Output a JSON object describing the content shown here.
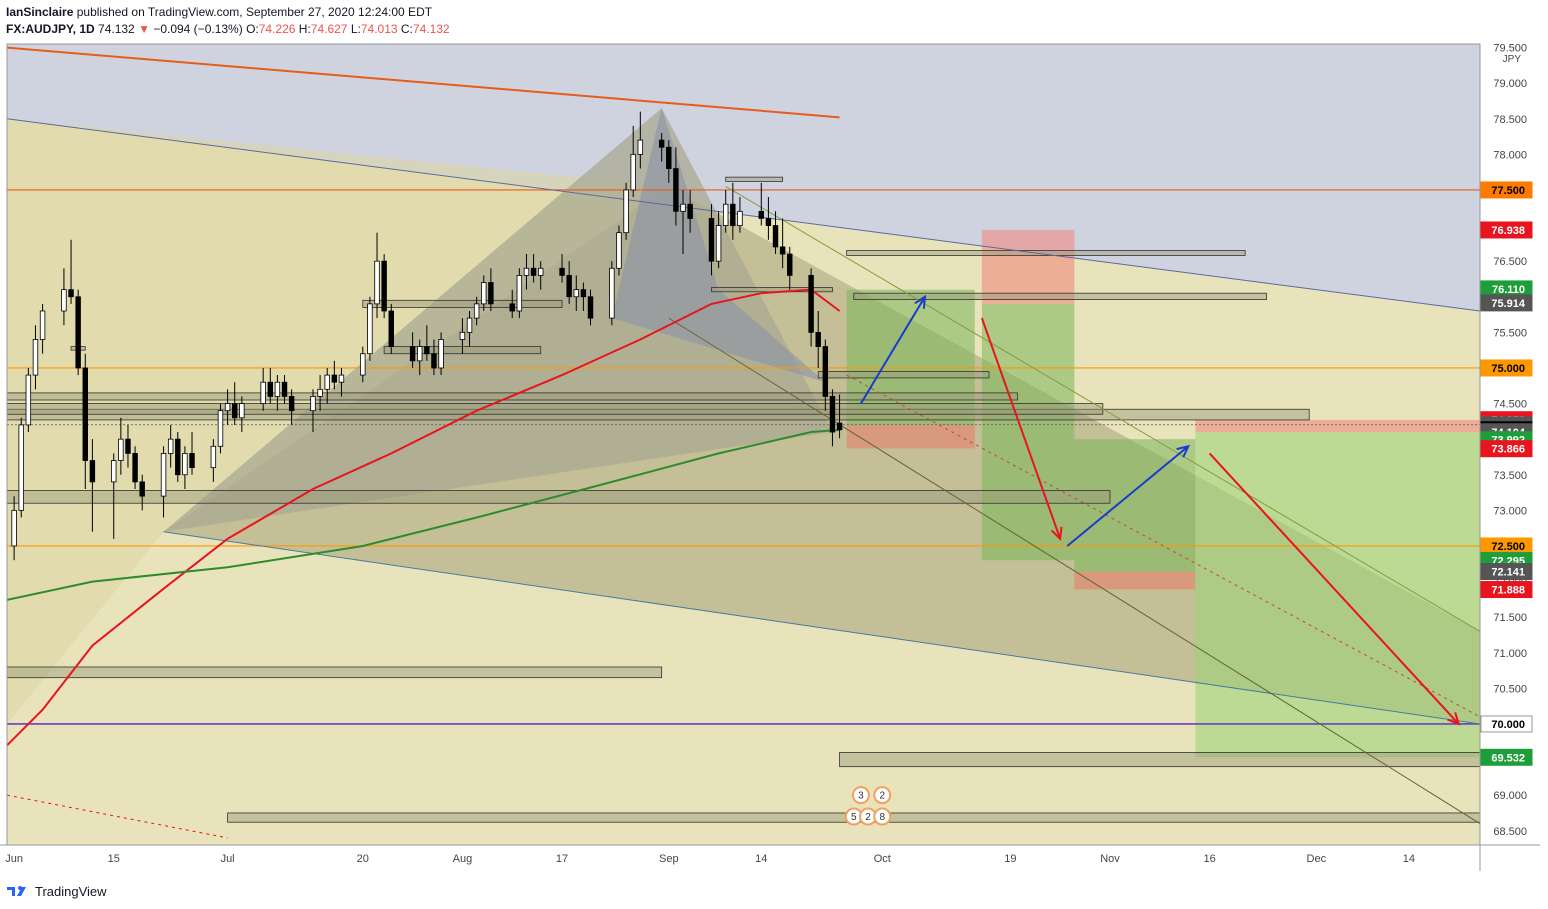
{
  "header": {
    "line1_user": "IanSinclaire",
    "line1_rest": "published on TradingView.com, September 27, 2020 12:24:00 EDT",
    "symbol": "FX:AUDJPY, 1D",
    "last": "74.132",
    "arrow": "▼",
    "change": "−0.094 (−0.13%)",
    "o_label": "O:",
    "o": "74.226",
    "h_label": "H:",
    "h": "74.627",
    "l_label": "L:",
    "l": "74.013",
    "c_label": "C:",
    "c": "74.132"
  },
  "footer": {
    "brand": "TradingView",
    "logo_icon": "tradingview-logo-icon"
  },
  "colors": {
    "up": "#ffffff",
    "down": "#000000",
    "ma_red": "#e8141e",
    "ma_green": "#2e8b2e",
    "orange": "#ff8c00",
    "purple": "#6a3dc8",
    "resistance": "#e65c1a"
  },
  "chart_data": {
    "type": "candlestick",
    "symbol": "FX:AUDJPY",
    "interval": "1D",
    "currency": "JPY",
    "ylim": [
      68.3,
      79.55
    ],
    "xlim": [
      "2020-05-31",
      "2020-12-24"
    ],
    "x_ticks": [
      {
        "date": "2020-06-01",
        "label": "Jun"
      },
      {
        "date": "2020-06-15",
        "label": "15"
      },
      {
        "date": "2020-07-01",
        "label": "Jul"
      },
      {
        "date": "2020-07-20",
        "label": "20"
      },
      {
        "date": "2020-08-03",
        "label": "Aug"
      },
      {
        "date": "2020-08-17",
        "label": "17"
      },
      {
        "date": "2020-09-01",
        "label": "Sep"
      },
      {
        "date": "2020-09-14",
        "label": "14"
      },
      {
        "date": "2020-10-01",
        "label": "Oct"
      },
      {
        "date": "2020-10-19",
        "label": "19"
      },
      {
        "date": "2020-11-02",
        "label": "Nov"
      },
      {
        "date": "2020-11-16",
        "label": "16"
      },
      {
        "date": "2020-12-01",
        "label": "Dec"
      },
      {
        "date": "2020-12-14",
        "label": "14"
      }
    ],
    "y_ticks": [
      "68.500",
      "69.000",
      "69.500",
      "70.000",
      "70.500",
      "71.000",
      "71.500",
      "72.000",
      "72.500",
      "73.000",
      "73.500",
      "74.000",
      "74.500",
      "75.000",
      "75.500",
      "76.000",
      "76.500",
      "77.000",
      "77.500",
      "78.000",
      "78.500",
      "79.000",
      "79.500"
    ],
    "price_labels": [
      {
        "value": 77.5,
        "text": "77.500",
        "bg": "#ff7a00",
        "fg": "#000000"
      },
      {
        "value": 76.938,
        "text": "76.938",
        "bg": "#e8141e",
        "fg": "#ffffff"
      },
      {
        "value": 76.11,
        "text": "76.110",
        "bg": "#1e9e3a",
        "fg": "#ffffff"
      },
      {
        "value": 75.914,
        "text": "75.914",
        "bg": "#555555",
        "fg": "#ffffff"
      },
      {
        "value": 75.0,
        "text": "75.000",
        "bg": "#ff9800",
        "fg": "#000000"
      },
      {
        "value": 74.273,
        "text": "74.273",
        "bg": "#e8141e",
        "fg": "#ffffff"
      },
      {
        "value": 74.202,
        "text": "74.202",
        "bg": "#555555",
        "fg": "#ffffff"
      },
      {
        "value": 74.132,
        "text": "74.132",
        "bg": "#000000",
        "fg": "#ffffff"
      },
      {
        "value": 74.104,
        "text": "74.104",
        "bg": "#555555",
        "fg": "#ffffff"
      },
      {
        "value": 73.992,
        "text": "73.992",
        "bg": "#1e9e3a",
        "fg": "#ffffff"
      },
      {
        "value": 73.866,
        "text": "73.866",
        "bg": "#e8141e",
        "fg": "#ffffff"
      },
      {
        "value": 72.5,
        "text": "72.500",
        "bg": "#ff9800",
        "fg": "#000000"
      },
      {
        "value": 72.295,
        "text": "72.295",
        "bg": "#1e9e3a",
        "fg": "#ffffff"
      },
      {
        "value": 72.141,
        "text": "72.141",
        "bg": "#555555",
        "fg": "#ffffff"
      },
      {
        "value": 71.888,
        "text": "71.888",
        "bg": "#e8141e",
        "fg": "#ffffff"
      },
      {
        "value": 70.0,
        "text": "70.000",
        "bg": "#ffffff",
        "fg": "#000000"
      },
      {
        "value": 69.532,
        "text": "69.532",
        "bg": "#1e9e3a",
        "fg": "#ffffff"
      }
    ],
    "ohlc": [
      [
        "2020-06-01",
        72.5,
        73.2,
        72.3,
        73.0
      ],
      [
        "2020-06-02",
        73.0,
        74.3,
        72.9,
        74.2
      ],
      [
        "2020-06-03",
        74.2,
        75.0,
        74.1,
        74.9
      ],
      [
        "2020-06-04",
        74.9,
        75.6,
        74.7,
        75.4
      ],
      [
        "2020-06-05",
        75.4,
        75.9,
        75.2,
        75.8
      ],
      [
        "2020-06-08",
        75.8,
        76.4,
        75.6,
        76.1
      ],
      [
        "2020-06-09",
        76.1,
        76.8,
        75.9,
        76.0
      ],
      [
        "2020-06-10",
        76.0,
        76.1,
        74.9,
        75.0
      ],
      [
        "2020-06-11",
        75.0,
        75.2,
        73.3,
        73.7
      ],
      [
        "2020-06-12",
        73.7,
        74.0,
        72.7,
        73.4
      ],
      [
        "2020-06-15",
        73.4,
        73.8,
        72.6,
        73.7
      ],
      [
        "2020-06-16",
        73.7,
        74.3,
        73.5,
        74.0
      ],
      [
        "2020-06-17",
        74.0,
        74.2,
        73.6,
        73.8
      ],
      [
        "2020-06-18",
        73.8,
        73.9,
        73.3,
        73.4
      ],
      [
        "2020-06-19",
        73.4,
        73.5,
        73.0,
        73.2
      ],
      [
        "2020-06-22",
        73.2,
        73.9,
        72.9,
        73.8
      ],
      [
        "2020-06-23",
        73.8,
        74.2,
        73.6,
        74.0
      ],
      [
        "2020-06-24",
        74.0,
        74.1,
        73.4,
        73.5
      ],
      [
        "2020-06-25",
        73.5,
        73.9,
        73.3,
        73.8
      ],
      [
        "2020-06-26",
        73.8,
        74.1,
        73.5,
        73.6
      ],
      [
        "2020-06-29",
        73.6,
        74.0,
        73.4,
        73.9
      ],
      [
        "2020-06-30",
        73.9,
        74.5,
        73.8,
        74.4
      ],
      [
        "2020-07-01",
        74.4,
        74.7,
        74.2,
        74.5
      ],
      [
        "2020-07-02",
        74.5,
        74.8,
        74.2,
        74.3
      ],
      [
        "2020-07-03",
        74.3,
        74.6,
        74.1,
        74.5
      ],
      [
        "2020-07-06",
        74.5,
        75.0,
        74.4,
        74.8
      ],
      [
        "2020-07-07",
        74.8,
        75.0,
        74.5,
        74.6
      ],
      [
        "2020-07-08",
        74.6,
        74.9,
        74.4,
        74.8
      ],
      [
        "2020-07-09",
        74.8,
        74.9,
        74.5,
        74.6
      ],
      [
        "2020-07-10",
        74.6,
        74.7,
        74.2,
        74.4
      ],
      [
        "2020-07-13",
        74.4,
        74.7,
        74.1,
        74.6
      ],
      [
        "2020-07-14",
        74.6,
        74.9,
        74.4,
        74.7
      ],
      [
        "2020-07-15",
        74.7,
        75.0,
        74.5,
        74.9
      ],
      [
        "2020-07-16",
        74.9,
        75.1,
        74.7,
        74.8
      ],
      [
        "2020-07-17",
        74.8,
        75.0,
        74.6,
        74.9
      ],
      [
        "2020-07-20",
        74.9,
        75.3,
        74.8,
        75.2
      ],
      [
        "2020-07-21",
        75.2,
        76.0,
        75.1,
        75.9
      ],
      [
        "2020-07-22",
        75.9,
        76.9,
        75.7,
        76.5
      ],
      [
        "2020-07-23",
        76.5,
        76.6,
        75.7,
        75.8
      ],
      [
        "2020-07-24",
        75.8,
        75.9,
        75.2,
        75.3
      ],
      [
        "2020-07-27",
        75.3,
        75.5,
        75.0,
        75.1
      ],
      [
        "2020-07-28",
        75.1,
        75.4,
        74.9,
        75.3
      ],
      [
        "2020-07-29",
        75.3,
        75.6,
        75.1,
        75.2
      ],
      [
        "2020-07-30",
        75.2,
        75.4,
        74.9,
        75.0
      ],
      [
        "2020-07-31",
        75.0,
        75.5,
        74.9,
        75.4
      ],
      [
        "2020-08-03",
        75.4,
        75.7,
        75.2,
        75.5
      ],
      [
        "2020-08-04",
        75.5,
        75.8,
        75.3,
        75.7
      ],
      [
        "2020-08-05",
        75.7,
        76.0,
        75.6,
        75.9
      ],
      [
        "2020-08-06",
        75.9,
        76.3,
        75.8,
        76.2
      ],
      [
        "2020-08-07",
        76.2,
        76.4,
        75.8,
        75.9
      ],
      [
        "2020-08-10",
        75.9,
        76.1,
        75.7,
        75.8
      ],
      [
        "2020-08-11",
        75.8,
        76.4,
        75.7,
        76.3
      ],
      [
        "2020-08-12",
        76.3,
        76.6,
        76.1,
        76.4
      ],
      [
        "2020-08-13",
        76.4,
        76.6,
        76.2,
        76.3
      ],
      [
        "2020-08-14",
        76.3,
        76.5,
        76.1,
        76.4
      ],
      [
        "2020-08-17",
        76.4,
        76.6,
        76.2,
        76.3
      ],
      [
        "2020-08-18",
        76.3,
        76.5,
        75.9,
        76.0
      ],
      [
        "2020-08-19",
        76.0,
        76.3,
        75.8,
        76.1
      ],
      [
        "2020-08-20",
        76.1,
        76.2,
        75.8,
        76.0
      ],
      [
        "2020-08-21",
        76.0,
        76.1,
        75.6,
        75.7
      ],
      [
        "2020-08-24",
        75.7,
        76.5,
        75.6,
        76.4
      ],
      [
        "2020-08-25",
        76.4,
        77.0,
        76.3,
        76.9
      ],
      [
        "2020-08-26",
        76.9,
        77.6,
        76.8,
        77.5
      ],
      [
        "2020-08-27",
        77.5,
        78.4,
        77.4,
        78.0
      ],
      [
        "2020-08-28",
        78.0,
        78.6,
        77.8,
        78.2
      ],
      [
        "2020-08-31",
        78.2,
        78.3,
        77.9,
        78.1
      ],
      [
        "2020-09-01",
        78.1,
        78.2,
        77.6,
        77.8
      ],
      [
        "2020-09-02",
        77.8,
        78.1,
        77.0,
        77.2
      ],
      [
        "2020-09-03",
        77.2,
        77.5,
        76.6,
        77.3
      ],
      [
        "2020-09-04",
        77.3,
        77.5,
        76.9,
        77.1
      ],
      [
        "2020-09-07",
        77.1,
        77.3,
        76.3,
        76.5
      ],
      [
        "2020-09-08",
        76.5,
        77.2,
        76.4,
        77.0
      ],
      [
        "2020-09-09",
        77.0,
        77.5,
        76.9,
        77.3
      ],
      [
        "2020-09-10",
        77.3,
        77.6,
        76.8,
        77.0
      ],
      [
        "2020-09-11",
        77.0,
        77.4,
        76.9,
        77.2
      ],
      [
        "2020-09-14",
        77.2,
        77.6,
        77.0,
        77.1
      ],
      [
        "2020-09-15",
        77.1,
        77.4,
        76.8,
        77.0
      ],
      [
        "2020-09-16",
        77.0,
        77.2,
        76.6,
        76.7
      ],
      [
        "2020-09-17",
        76.7,
        77.1,
        76.4,
        76.6
      ],
      [
        "2020-09-18",
        76.6,
        76.7,
        76.1,
        76.3
      ],
      [
        "2020-09-21",
        76.3,
        76.4,
        75.3,
        75.5
      ],
      [
        "2020-09-22",
        75.5,
        75.8,
        75.0,
        75.3
      ],
      [
        "2020-09-23",
        75.3,
        75.4,
        74.4,
        74.6
      ],
      [
        "2020-09-24",
        74.6,
        74.7,
        73.9,
        74.1
      ],
      [
        "2020-09-25",
        74.226,
        74.627,
        74.013,
        74.132
      ]
    ],
    "series": [
      {
        "name": "",
        "color": "#e8141e",
        "points": [
          [
            "2020-05-29",
            69.5
          ],
          [
            "2020-06-05",
            70.2
          ],
          [
            "2020-06-12",
            71.1
          ],
          [
            "2020-06-22",
            71.9
          ],
          [
            "2020-07-01",
            72.6
          ],
          [
            "2020-07-13",
            73.3
          ],
          [
            "2020-07-24",
            73.8
          ],
          [
            "2020-08-05",
            74.4
          ],
          [
            "2020-08-17",
            74.9
          ],
          [
            "2020-08-28",
            75.4
          ],
          [
            "2020-09-07",
            75.9
          ],
          [
            "2020-09-14",
            76.05
          ],
          [
            "2020-09-21",
            76.1
          ],
          [
            "2020-09-25",
            75.8
          ]
        ]
      },
      {
        "name": "",
        "color": "#2e8b2e",
        "points": [
          [
            "2020-05-29",
            71.7
          ],
          [
            "2020-06-12",
            72.0
          ],
          [
            "2020-07-01",
            72.2
          ],
          [
            "2020-07-20",
            72.5
          ],
          [
            "2020-08-05",
            72.9
          ],
          [
            "2020-08-24",
            73.4
          ],
          [
            "2020-09-08",
            73.8
          ],
          [
            "2020-09-21",
            74.1
          ],
          [
            "2020-09-25",
            74.13
          ]
        ]
      }
    ],
    "horizontal_lines": [
      {
        "value": 77.5,
        "color": "#e65c1a"
      },
      {
        "value": 75.0,
        "color": "#ff9800"
      },
      {
        "value": 72.5,
        "color": "#ff9800"
      },
      {
        "value": 70.0,
        "color": "#6a3dc8"
      }
    ],
    "trendlines": [
      {
        "from": [
          "2020-05-31",
          79.5
        ],
        "to": [
          "2020-09-25",
          78.52
        ],
        "color": "#e65c1a"
      },
      {
        "from": [
          "2020-05-31",
          78.5
        ],
        "to": [
          "2020-12-24",
          75.8
        ],
        "color": "#5a6aa0"
      },
      {
        "from": [
          "2020-09-09",
          77.55
        ],
        "to": [
          "2020-12-24",
          71.3
        ],
        "color": "#8a9a3a"
      },
      {
        "from": [
          "2020-06-22",
          72.7
        ],
        "to": [
          "2020-12-24",
          70.0
        ],
        "color": "#4a7aa0"
      },
      {
        "from": [
          "2020-09-01",
          75.7
        ],
        "to": [
          "2020-12-24",
          68.6
        ],
        "color": "#666633"
      },
      {
        "from": [
          "2020-05-31",
          69.0
        ],
        "to": [
          "2020-07-01",
          68.4
        ],
        "color": "#e8141e",
        "dashed": true
      },
      {
        "from": [
          "2020-09-26",
          74.9
        ],
        "to": [
          "2020-12-24",
          70.1
        ],
        "color": "#cc4444",
        "dashed": true
      }
    ],
    "arrows": [
      {
        "from": [
          "2020-09-28",
          74.5
        ],
        "to": [
          "2020-10-07",
          76.0
        ],
        "color": "#1a3ccc"
      },
      {
        "from": [
          "2020-10-15",
          75.7
        ],
        "to": [
          "2020-10-26",
          72.6
        ],
        "color": "#e8141e"
      },
      {
        "from": [
          "2020-10-27",
          72.5
        ],
        "to": [
          "2020-11-13",
          73.9
        ],
        "color": "#1a3ccc"
      },
      {
        "from": [
          "2020-11-16",
          73.8
        ],
        "to": [
          "2020-12-21",
          70.0
        ],
        "color": "#e8141e"
      }
    ],
    "annotations": [
      "3",
      "2",
      "5",
      "2",
      "8"
    ]
  }
}
